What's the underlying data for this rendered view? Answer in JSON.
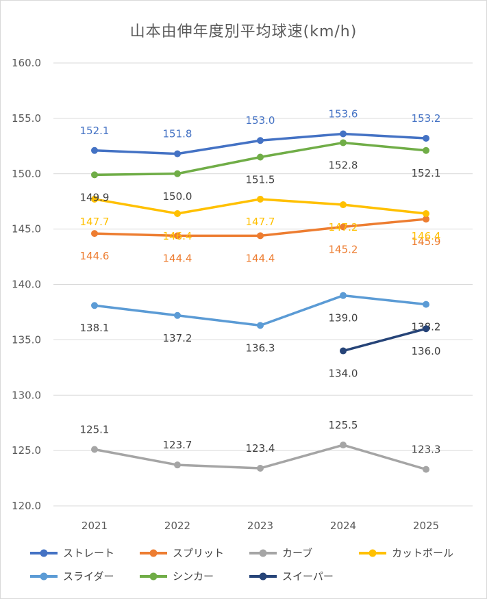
{
  "chart_data": {
    "type": "line",
    "title": "山本由伸年度別平均球速(km/h)",
    "categories": [
      "2021",
      "2022",
      "2023",
      "2024",
      "2025"
    ],
    "ylim": [
      120,
      160
    ],
    "yticks": [
      "120.0",
      "125.0",
      "130.0",
      "135.0",
      "140.0",
      "145.0",
      "150.0",
      "155.0",
      "160.0"
    ],
    "grid": true,
    "legend_position": "bottom",
    "series": [
      {
        "name": "ストレート",
        "color": "#4472C4",
        "values": [
          152.1,
          151.8,
          153.0,
          153.6,
          153.2
        ],
        "labels": [
          "152.1",
          "151.8",
          "153.0",
          "153.6",
          "153.2"
        ],
        "label_pos": "above",
        "label_color": "#4472C4"
      },
      {
        "name": "スプリット",
        "color": "#ED7D31",
        "values": [
          144.6,
          144.4,
          144.4,
          145.2,
          145.9
        ],
        "labels": [
          "144.6",
          "144.4",
          "144.4",
          "145.2",
          "145.9"
        ],
        "label_pos": "below",
        "label_color": "#ED7D31"
      },
      {
        "name": "カーブ",
        "color": "#A5A5A5",
        "values": [
          125.1,
          123.7,
          123.4,
          125.5,
          123.3
        ],
        "labels": [
          "125.1",
          "123.7",
          "123.4",
          "125.5",
          "123.3"
        ],
        "label_pos": "above",
        "label_color": "#404040"
      },
      {
        "name": "カットボール",
        "color": "#FFC000",
        "values": [
          147.7,
          146.4,
          147.7,
          147.2,
          146.4
        ],
        "labels": [
          "147.7",
          "146.4",
          "147.7",
          "147.2",
          "146.4"
        ],
        "label_pos": "below",
        "label_color": "#FFC000"
      },
      {
        "name": "スライダー",
        "color": "#5B9BD5",
        "values": [
          138.1,
          137.2,
          136.3,
          139.0,
          138.2
        ],
        "labels": [
          "138.1",
          "137.2",
          "136.3",
          "139.0",
          "138.2"
        ],
        "label_pos": "below",
        "label_color": "#404040"
      },
      {
        "name": "シンカー",
        "color": "#70AD47",
        "values": [
          149.9,
          150.0,
          151.5,
          152.8,
          152.1
        ],
        "labels": [
          "149.9",
          "150.0",
          "151.5",
          "152.8",
          "152.1"
        ],
        "label_pos": "below",
        "label_color": "#404040"
      },
      {
        "name": "スイーパー",
        "color": "#264478",
        "values": [
          null,
          null,
          null,
          134.0,
          136.0
        ],
        "labels": [
          "",
          "",
          "",
          "134.0",
          "136.0"
        ],
        "label_pos": "below",
        "label_color": "#404040"
      }
    ]
  }
}
